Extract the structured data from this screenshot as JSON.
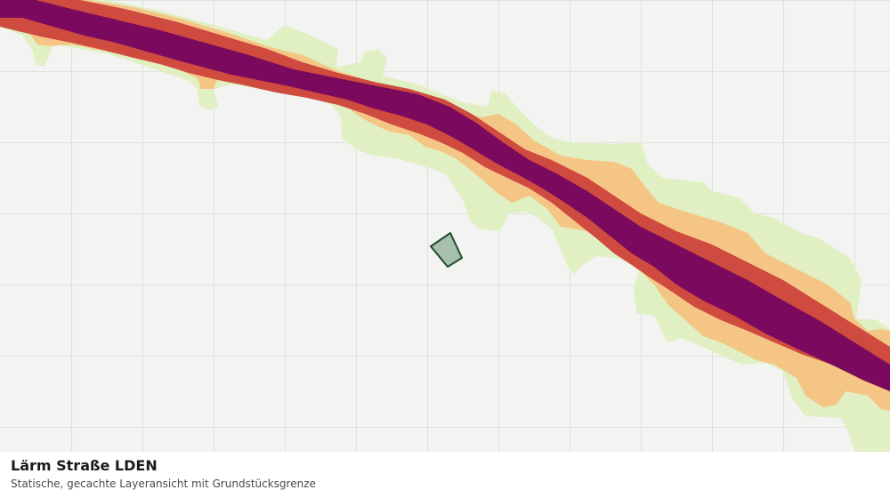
{
  "layer": {
    "title": "Lärm Straße LDEN",
    "subtitle": "Statische, gecachte Layeransicht mit Grundstücksgrenze"
  },
  "colors": {
    "background": "#f3f4f2",
    "grid": "#dfe1dd",
    "noise_band_outer": "#e0f0c2",
    "noise_band_mid": "#f5c585",
    "noise_band_high": "#cf4a3f",
    "noise_band_core": "#7b0a5e",
    "parcel_fill": "#a8bfae",
    "parcel_border": "#1f4b2e"
  },
  "icons": {
    "parcel": "parcel-boundary-polygon"
  }
}
